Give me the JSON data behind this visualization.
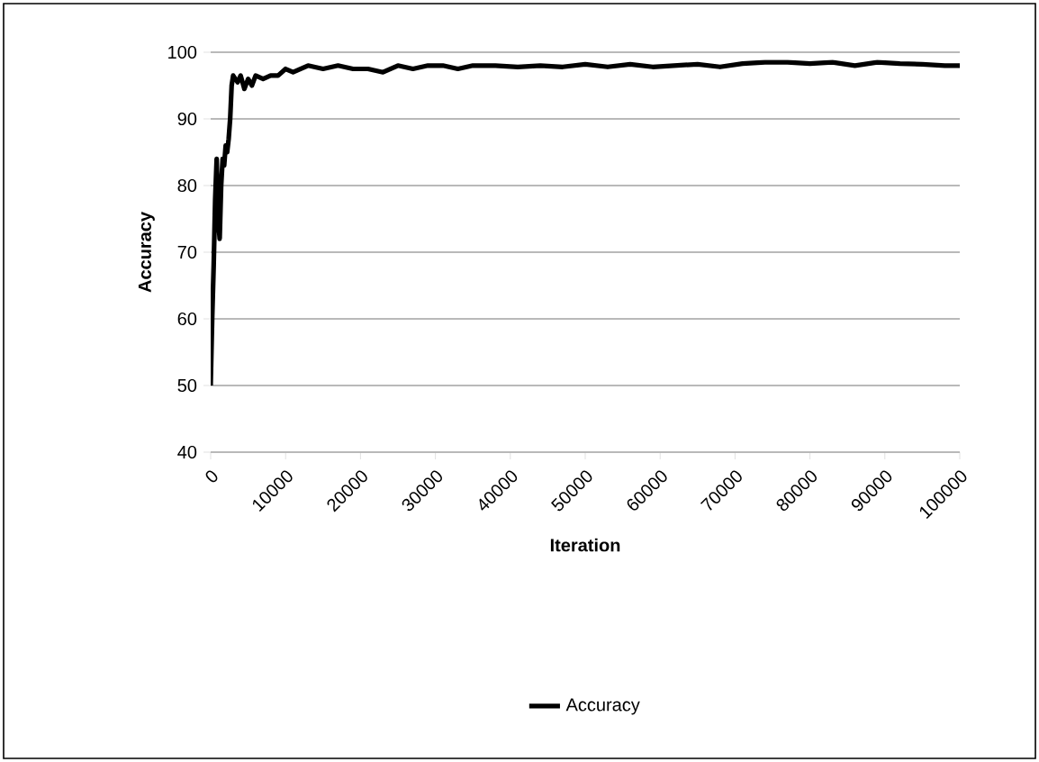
{
  "chart_data": {
    "type": "line",
    "xlabel": "Iteration",
    "ylabel": "Accuracy",
    "legend": "bottom",
    "grid": "y",
    "xlim": [
      0,
      100000
    ],
    "ylim": [
      40,
      100
    ],
    "xticks": [
      0,
      10000,
      20000,
      30000,
      40000,
      50000,
      60000,
      70000,
      80000,
      90000,
      100000
    ],
    "yticks": [
      40,
      50,
      60,
      70,
      80,
      90,
      100
    ],
    "series": [
      {
        "name": "Accuracy",
        "color": "#000000",
        "x": [
          0,
          200,
          400,
          600,
          800,
          1000,
          1200,
          1400,
          1600,
          1800,
          2000,
          2200,
          2400,
          2600,
          2800,
          3000,
          3300,
          3600,
          4000,
          4500,
          5000,
          5500,
          6000,
          7000,
          8000,
          9000,
          10000,
          11000,
          12000,
          13000,
          15000,
          17000,
          19000,
          21000,
          23000,
          25000,
          27000,
          29000,
          31000,
          33000,
          35000,
          38000,
          41000,
          44000,
          47000,
          50000,
          53000,
          56000,
          59000,
          62000,
          65000,
          68000,
          71000,
          74000,
          77000,
          80000,
          83000,
          86000,
          89000,
          92000,
          95000,
          98000,
          100000
        ],
        "values": [
          50,
          60,
          68,
          78,
          84,
          75,
          72,
          80,
          84,
          83,
          86,
          85,
          87,
          90,
          95,
          96.5,
          96,
          95.5,
          96.5,
          94.5,
          96,
          95,
          96.5,
          96,
          96.5,
          96.5,
          97.5,
          97,
          97.5,
          98,
          97.5,
          98,
          97.5,
          97.5,
          97,
          98,
          97.5,
          98,
          98,
          97.5,
          98,
          98,
          97.8,
          98,
          97.8,
          98.2,
          97.8,
          98.2,
          97.8,
          98,
          98.2,
          97.8,
          98.3,
          98.5,
          98.5,
          98.3,
          98.5,
          98,
          98.5,
          98.3,
          98.2,
          98,
          98
        ]
      }
    ]
  }
}
